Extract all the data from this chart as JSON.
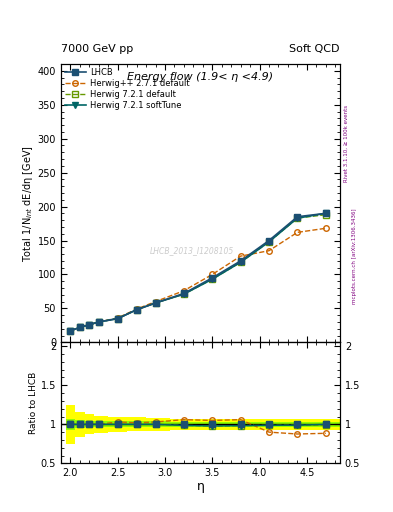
{
  "title_main": "Energy flow (1.9< η <4.9)",
  "header_left": "7000 GeV pp",
  "header_right": "Soft QCD",
  "xlabel": "η",
  "ylabel_main": "Total 1/N$_{int}$ dE/dη [GeV]",
  "ylabel_ratio": "Ratio to LHCB",
  "watermark": "LHCB_2013_I1208105",
  "right_label": "mcplots.cern.ch [arXiv:1306.3436]",
  "right_label2": "Rivet 3.1.10, ≥ 100k events",
  "eta": [
    2.0,
    2.1,
    2.2,
    2.3,
    2.5,
    2.7,
    2.9,
    3.2,
    3.5,
    3.8,
    4.1,
    4.4,
    4.7
  ],
  "lhcb": [
    17,
    22,
    26,
    30,
    35,
    48,
    58,
    72,
    95,
    120,
    150,
    185,
    190
  ],
  "herwig_pp": [
    17,
    22,
    26,
    30,
    36,
    49,
    60,
    76,
    100,
    127,
    135,
    162,
    168
  ],
  "herwig_721_def": [
    17,
    22,
    26,
    30,
    35,
    48,
    58,
    71,
    93,
    118,
    148,
    183,
    188
  ],
  "herwig_721_soft": [
    17,
    22,
    26,
    30,
    35,
    48,
    58,
    71,
    93,
    118,
    148,
    183,
    190
  ],
  "lhcb_err_yellow_lo": [
    0.75,
    0.84,
    0.87,
    0.89,
    0.9,
    0.91,
    0.92,
    0.93,
    0.93,
    0.93,
    0.93,
    0.93,
    0.93
  ],
  "lhcb_err_yellow_hi": [
    1.25,
    1.16,
    1.13,
    1.11,
    1.1,
    1.09,
    1.08,
    1.07,
    1.07,
    1.07,
    1.07,
    1.07,
    1.07
  ],
  "lhcb_err_green_lo": [
    0.93,
    0.95,
    0.96,
    0.96,
    0.96,
    0.96,
    0.96,
    0.97,
    0.97,
    0.97,
    0.97,
    0.97,
    0.97
  ],
  "lhcb_err_green_hi": [
    1.07,
    1.05,
    1.04,
    1.04,
    1.04,
    1.04,
    1.04,
    1.03,
    1.03,
    1.03,
    1.03,
    1.03,
    1.03
  ],
  "ratio_herwig_pp": [
    1.0,
    1.0,
    1.0,
    1.0,
    1.03,
    1.02,
    1.03,
    1.06,
    1.05,
    1.06,
    0.9,
    0.876,
    0.885
  ],
  "ratio_herwig_721_def": [
    1.0,
    1.0,
    1.0,
    1.0,
    1.0,
    1.0,
    1.0,
    0.986,
    0.979,
    0.983,
    0.987,
    0.989,
    0.99
  ],
  "ratio_herwig_721_soft": [
    1.0,
    1.0,
    1.0,
    1.0,
    1.0,
    1.0,
    1.0,
    0.986,
    0.979,
    0.983,
    0.987,
    0.989,
    1.0
  ],
  "color_lhcb": "#1b4f72",
  "color_herwig_pp": "#cc6600",
  "color_herwig_721_def": "#669900",
  "color_herwig_721_soft": "#006666",
  "ylim_main": [
    0,
    410
  ],
  "ylim_ratio": [
    0.5,
    2.05
  ],
  "xlim": [
    1.9,
    4.85
  ],
  "yticks_main": [
    0,
    50,
    100,
    150,
    200,
    250,
    300,
    350,
    400
  ],
  "yticks_ratio": [
    0.5,
    1.0,
    1.5,
    2.0
  ]
}
